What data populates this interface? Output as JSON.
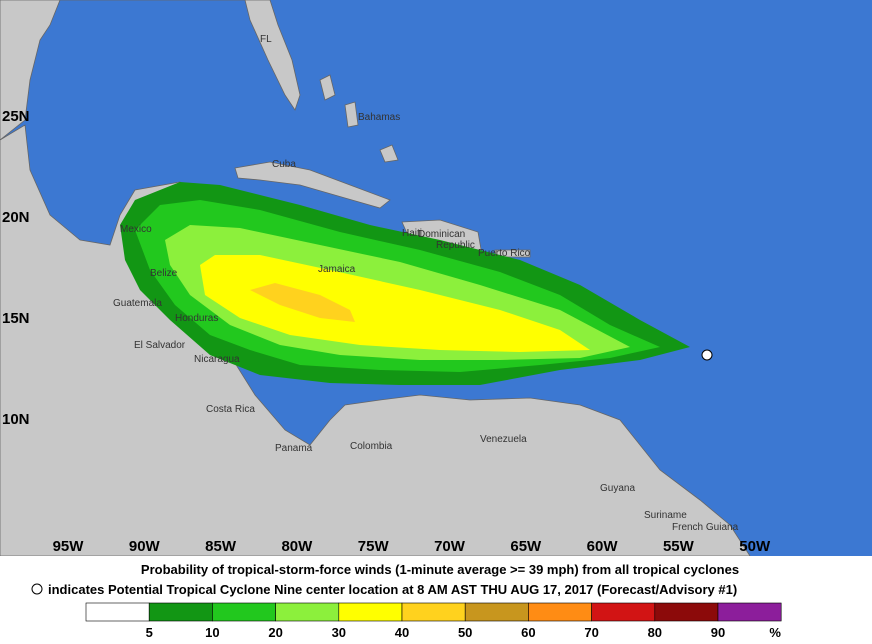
{
  "map": {
    "lat_labels": [
      "25N",
      "20N",
      "15N",
      "10N"
    ],
    "lon_labels": [
      "95W",
      "90W",
      "85W",
      "80W",
      "75W",
      "70W",
      "65W",
      "60W",
      "55W",
      "50W"
    ],
    "places": [
      "FL",
      "Bahamas",
      "Cuba",
      "Mexico",
      "Belize",
      "Guatemala",
      "Honduras",
      "El Salvador",
      "Nicaragua",
      "Costa Rica",
      "Panama",
      "Colombia",
      "Venezuela",
      "Guyana",
      "Suriname",
      "French Guiana",
      "Jamaica",
      "Haiti",
      "Dominican",
      "Republic",
      "Puerto Rico"
    ]
  },
  "caption": {
    "line1": "Probability of tropical-storm-force winds (1-minute average >= 39 mph) from all tropical cyclones",
    "line2": "indicates Potential Tropical Cyclone Nine center location at 8 AM AST THU AUG 17, 2017 (Forecast/Advisory #1)"
  },
  "legend": {
    "colors": [
      "#ffffff",
      "#129614",
      "#22c81e",
      "#8cf03c",
      "#ffff00",
      "#ffd21e",
      "#c8961e",
      "#ff8c14",
      "#d21414",
      "#8c0a0a",
      "#8c1e9b"
    ],
    "labels": [
      "5",
      "10",
      "20",
      "30",
      "40",
      "50",
      "60",
      "70",
      "80",
      "90",
      "%"
    ]
  }
}
